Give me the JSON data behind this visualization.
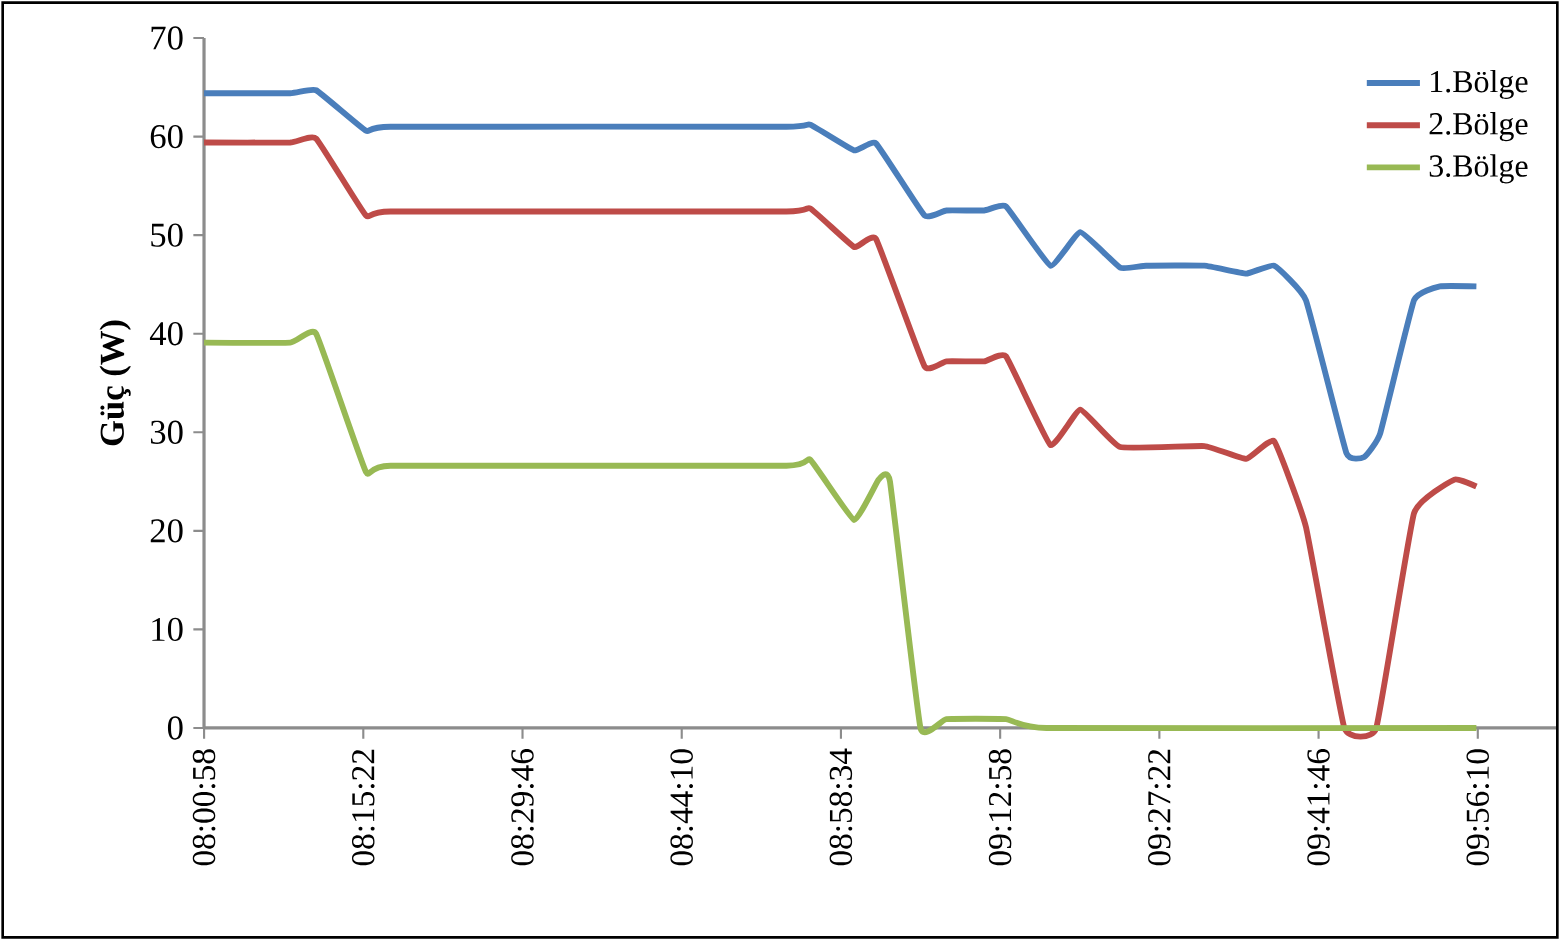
{
  "chart_data": {
    "type": "line",
    "ylabel": "Güç (W)",
    "xlim": [
      8.016,
      10.054
    ],
    "ylim": [
      0,
      70
    ],
    "xticks": [
      {
        "value": 8.0161,
        "label": "08:00:58"
      },
      {
        "value": 8.2561,
        "label": "08:15:22"
      },
      {
        "value": 8.4961,
        "label": "08:29:46"
      },
      {
        "value": 8.7361,
        "label": "08:44:10"
      },
      {
        "value": 8.9761,
        "label": "08:58:34"
      },
      {
        "value": 9.2161,
        "label": "09:12:58"
      },
      {
        "value": 9.4561,
        "label": "09:27:22"
      },
      {
        "value": 9.6961,
        "label": "09:41:46"
      },
      {
        "value": 9.9361,
        "label": "09:56:10"
      }
    ],
    "yticks": [
      0,
      10,
      20,
      30,
      40,
      50,
      60,
      70
    ],
    "grid": false,
    "legend": "top right",
    "marker": "none",
    "line_style": "solid",
    "series": [
      {
        "name": "1.Bölge",
        "color": "#4a7ebb",
        "x": [
          8.016,
          8.146,
          8.185,
          8.26,
          8.297,
          8.894,
          8.93,
          8.996,
          9.029,
          9.102,
          9.135,
          9.192,
          9.225,
          9.292,
          9.337,
          9.397,
          9.436,
          9.524,
          9.587,
          9.629,
          9.677,
          9.738,
          9.765,
          9.789,
          9.84,
          9.879,
          9.934
        ],
        "values": [
          64.4,
          64.4,
          64.7,
          60.6,
          61.0,
          61.0,
          61.2,
          58.6,
          59.3,
          52.0,
          52.5,
          52.5,
          52.9,
          46.9,
          50.3,
          46.7,
          46.9,
          46.9,
          46.1,
          46.9,
          43.4,
          27.9,
          27.5,
          29.9,
          43.4,
          44.8,
          44.8
        ]
      },
      {
        "name": "2.Bölge",
        "color": "#be4b48",
        "x": [
          8.016,
          8.146,
          8.185,
          8.26,
          8.297,
          8.894,
          8.93,
          8.996,
          9.029,
          9.102,
          9.135,
          9.192,
          9.225,
          9.292,
          9.337,
          9.397,
          9.524,
          9.587,
          9.629,
          9.677,
          9.735,
          9.783,
          9.84,
          9.901,
          9.934
        ],
        "values": [
          59.4,
          59.4,
          59.8,
          52.0,
          52.4,
          52.4,
          52.7,
          48.8,
          49.6,
          36.7,
          37.2,
          37.2,
          37.7,
          28.7,
          32.3,
          28.5,
          28.6,
          27.3,
          29.1,
          20.4,
          0,
          0,
          21.8,
          25.2,
          24.5
        ]
      },
      {
        "name": "3.Bölge",
        "color": "#98b954",
        "x": [
          8.016,
          8.146,
          8.185,
          8.26,
          8.297,
          8.894,
          8.93,
          8.996,
          9.033,
          9.05,
          9.096,
          9.135,
          9.225,
          9.286,
          9.934
        ],
        "values": [
          39.1,
          39.1,
          40.0,
          26.0,
          26.6,
          26.6,
          27.2,
          21.1,
          25.2,
          25.0,
          0,
          0.9,
          0.9,
          0,
          0
        ]
      }
    ]
  }
}
